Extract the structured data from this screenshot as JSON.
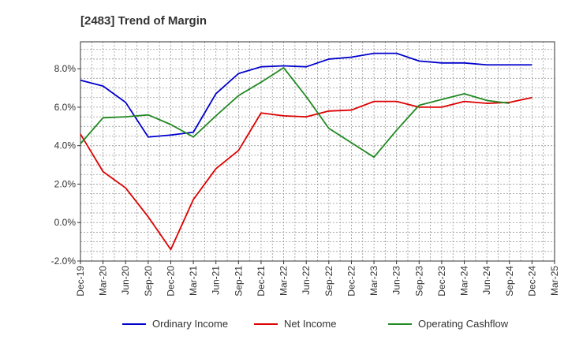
{
  "chart_data": {
    "type": "line",
    "title": "[2483]  Trend of Margin",
    "xlabel": "",
    "ylabel": "",
    "categories": [
      "Dec-19",
      "Mar-20",
      "Jun-20",
      "Sep-20",
      "Dec-20",
      "Mar-21",
      "Jun-21",
      "Sep-21",
      "Dec-21",
      "Mar-22",
      "Jun-22",
      "Sep-22",
      "Dec-22",
      "Mar-23",
      "Jun-23",
      "Sep-23",
      "Dec-23",
      "Mar-24",
      "Jun-24",
      "Sep-24",
      "Dec-24",
      "Mar-25"
    ],
    "yticks": [
      "-2.0%",
      "0.0%",
      "2.0%",
      "4.0%",
      "6.0%",
      "8.0%"
    ],
    "ylim": [
      -2.0,
      9.4
    ],
    "grid": true,
    "legend_position": "bottom",
    "series": [
      {
        "name": "Ordinary Income",
        "color": "#0000cc",
        "values": [
          7.4,
          7.1,
          6.25,
          4.45,
          4.55,
          4.7,
          6.7,
          7.75,
          8.1,
          8.15,
          8.1,
          8.5,
          8.6,
          8.8,
          8.8,
          8.4,
          8.3,
          8.3,
          8.2,
          8.2,
          8.2,
          null
        ]
      },
      {
        "name": "Net Income",
        "color": "#dd0000",
        "values": [
          4.6,
          2.65,
          1.8,
          0.3,
          -1.4,
          1.2,
          2.8,
          3.75,
          5.7,
          5.55,
          5.5,
          5.8,
          5.85,
          6.3,
          6.3,
          6.0,
          6.0,
          6.3,
          6.2,
          6.25,
          6.5,
          null
        ]
      },
      {
        "name": "Operating Cashflow",
        "color": "#228822",
        "values": [
          4.1,
          5.45,
          5.5,
          5.6,
          5.1,
          4.45,
          5.55,
          6.6,
          7.3,
          8.05,
          6.55,
          4.9,
          4.15,
          3.4,
          4.8,
          6.1,
          6.4,
          6.7,
          6.35,
          6.2,
          null,
          null
        ]
      }
    ]
  }
}
